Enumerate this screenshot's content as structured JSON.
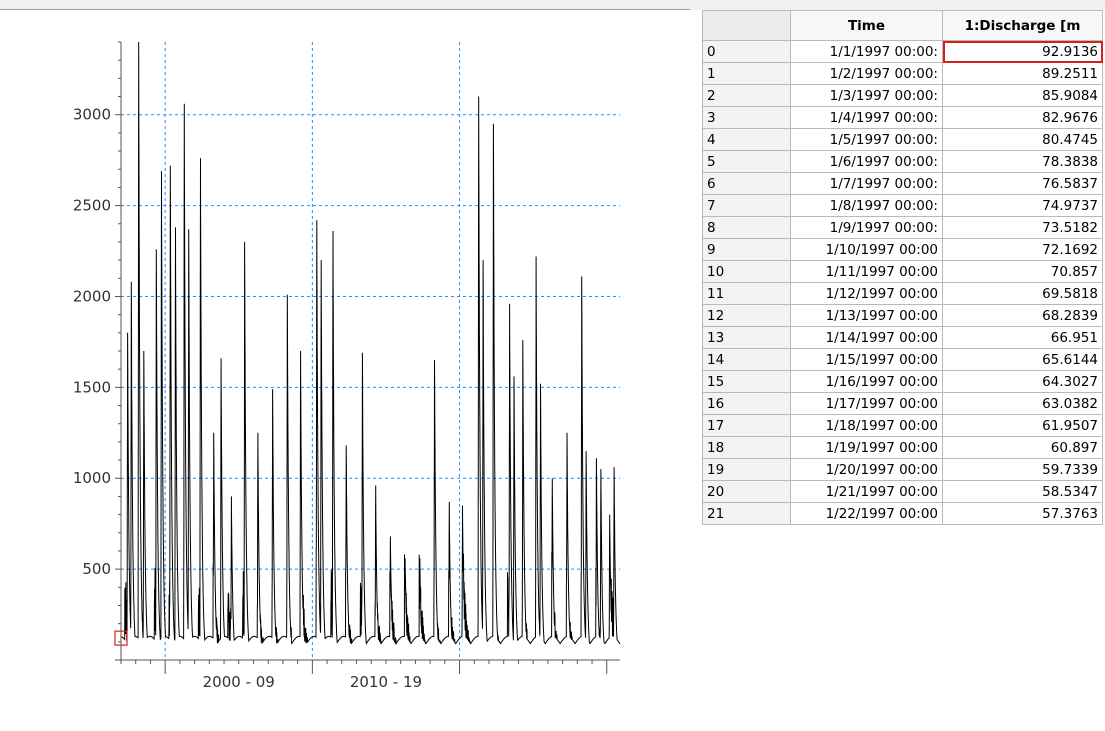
{
  "chart_data": {
    "type": "line",
    "title": "",
    "xlabel": "",
    "ylabel": "",
    "yticks": [
      500,
      1000,
      1500,
      2000,
      2500,
      3000
    ],
    "xtick_labels": [
      "2000 - 09",
      "2010 - 19"
    ],
    "ylim": [
      0,
      3400
    ],
    "grid": true,
    "peaks": [
      {
        "year": 1997.45,
        "value": 1800
      },
      {
        "year": 1997.7,
        "value": 2080
      },
      {
        "year": 1998.2,
        "value": 3400
      },
      {
        "year": 1998.55,
        "value": 1700
      },
      {
        "year": 1999.4,
        "value": 2260
      },
      {
        "year": 1999.75,
        "value": 2690
      },
      {
        "year": 2000.35,
        "value": 2720
      },
      {
        "year": 2000.7,
        "value": 2380
      },
      {
        "year": 2001.3,
        "value": 3060
      },
      {
        "year": 2001.6,
        "value": 2370
      },
      {
        "year": 2002.4,
        "value": 2760
      },
      {
        "year": 2003.3,
        "value": 1250
      },
      {
        "year": 2003.8,
        "value": 1660
      },
      {
        "year": 2004.5,
        "value": 900
      },
      {
        "year": 2005.4,
        "value": 2300
      },
      {
        "year": 2006.3,
        "value": 1250
      },
      {
        "year": 2007.3,
        "value": 1490
      },
      {
        "year": 2008.3,
        "value": 2010
      },
      {
        "year": 2009.2,
        "value": 1700
      },
      {
        "year": 2010.3,
        "value": 2420
      },
      {
        "year": 2010.6,
        "value": 2200
      },
      {
        "year": 2011.4,
        "value": 2360
      },
      {
        "year": 2012.3,
        "value": 1180
      },
      {
        "year": 2013.4,
        "value": 1690
      },
      {
        "year": 2014.3,
        "value": 960
      },
      {
        "year": 2015.3,
        "value": 680
      },
      {
        "year": 2016.3,
        "value": 560
      },
      {
        "year": 2017.3,
        "value": 560
      },
      {
        "year": 2018.3,
        "value": 1650
      },
      {
        "year": 2019.3,
        "value": 870
      },
      {
        "year": 2020.2,
        "value": 850
      },
      {
        "year": 2021.3,
        "value": 3100
      },
      {
        "year": 2021.6,
        "value": 2200
      },
      {
        "year": 2022.3,
        "value": 2950
      },
      {
        "year": 2023.4,
        "value": 1960
      },
      {
        "year": 2023.7,
        "value": 1560
      },
      {
        "year": 2024.3,
        "value": 1760
      },
      {
        "year": 2025.2,
        "value": 2220
      },
      {
        "year": 2025.5,
        "value": 1520
      },
      {
        "year": 2026.3,
        "value": 1000
      },
      {
        "year": 2027.3,
        "value": 1250
      },
      {
        "year": 2028.3,
        "value": 2110
      },
      {
        "year": 2028.6,
        "value": 1150
      },
      {
        "year": 2029.3,
        "value": 1110
      },
      {
        "year": 2029.6,
        "value": 1050
      },
      {
        "year": 2030.2,
        "value": 800
      },
      {
        "year": 2030.5,
        "value": 1060
      }
    ]
  },
  "grid": {
    "headers": [
      "",
      "Time",
      "1:Discharge [m"
    ],
    "rows": [
      {
        "index": "0",
        "time": "1/1/1997 00:00:",
        "value": "92.9136"
      },
      {
        "index": "1",
        "time": "1/2/1997 00:00:",
        "value": "89.2511"
      },
      {
        "index": "2",
        "time": "1/3/1997 00:00:",
        "value": "85.9084"
      },
      {
        "index": "3",
        "time": "1/4/1997 00:00:",
        "value": "82.9676"
      },
      {
        "index": "4",
        "time": "1/5/1997 00:00:",
        "value": "80.4745"
      },
      {
        "index": "5",
        "time": "1/6/1997 00:00:",
        "value": "78.3838"
      },
      {
        "index": "6",
        "time": "1/7/1997 00:00:",
        "value": "76.5837"
      },
      {
        "index": "7",
        "time": "1/8/1997 00:00:",
        "value": "74.9737"
      },
      {
        "index": "8",
        "time": "1/9/1997 00:00:",
        "value": "73.5182"
      },
      {
        "index": "9",
        "time": "1/10/1997 00:00",
        "value": "72.1692"
      },
      {
        "index": "10",
        "time": "1/11/1997 00:00",
        "value": "70.857"
      },
      {
        "index": "11",
        "time": "1/12/1997 00:00",
        "value": "69.5818"
      },
      {
        "index": "12",
        "time": "1/13/1997 00:00",
        "value": "68.2839"
      },
      {
        "index": "13",
        "time": "1/14/1997 00:00",
        "value": "66.951"
      },
      {
        "index": "14",
        "time": "1/15/1997 00:00",
        "value": "65.6144"
      },
      {
        "index": "15",
        "time": "1/16/1997 00:00",
        "value": "64.3027"
      },
      {
        "index": "16",
        "time": "1/17/1997 00:00",
        "value": "63.0382"
      },
      {
        "index": "17",
        "time": "1/18/1997 00:00",
        "value": "61.9507"
      },
      {
        "index": "18",
        "time": "1/19/1997 00:00",
        "value": "60.897"
      },
      {
        "index": "19",
        "time": "1/20/1997 00:00",
        "value": "59.7339"
      },
      {
        "index": "20",
        "time": "1/21/1997 00:00",
        "value": "58.5347"
      },
      {
        "index": "21",
        "time": "1/22/1997 00:00",
        "value": "57.3763"
      }
    ]
  },
  "colors": {
    "grid_line": "#1e8fff",
    "series": "#000000",
    "selection": "#d42020"
  }
}
